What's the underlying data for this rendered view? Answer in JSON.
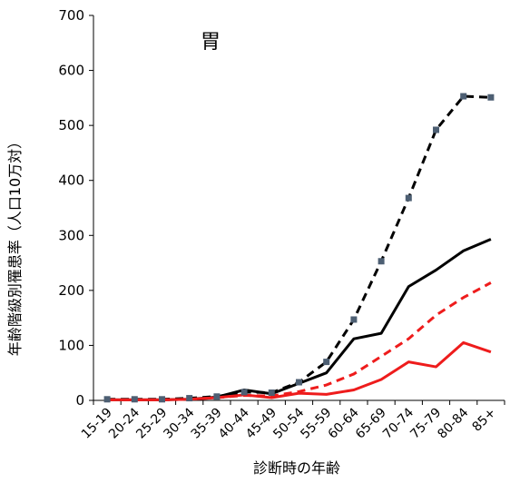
{
  "chart_data": {
    "type": "line",
    "title": "胃",
    "xlabel": "診断時の年齢",
    "ylabel": "年齢階級別罹患率（人口10万対）",
    "ylim": [
      0,
      700
    ],
    "yticks": [
      0,
      100,
      200,
      300,
      400,
      500,
      600,
      700
    ],
    "grid": false,
    "legend": "none",
    "categories": [
      "15-19",
      "20-24",
      "25-29",
      "30-34",
      "35-39",
      "40-44",
      "45-49",
      "50-54",
      "55-59",
      "60-64",
      "65-69",
      "70-74",
      "75-79",
      "80-84",
      "85+"
    ],
    "series": [
      {
        "color": "#000000",
        "dash": true,
        "markers": true,
        "marker_color": "#4d5f73",
        "values": [
          2,
          2,
          2,
          4,
          7,
          15,
          14,
          33,
          70,
          147,
          253,
          368,
          492,
          553,
          551
        ]
      },
      {
        "color": "#000000",
        "dash": false,
        "markers": false,
        "values": [
          1,
          1,
          1,
          2,
          6,
          19,
          12,
          31,
          50,
          112,
          122,
          207,
          237,
          272,
          293
        ]
      },
      {
        "color": "#ee1c1c",
        "dash": true,
        "markers": false,
        "values": [
          1,
          1,
          1,
          2,
          5,
          9,
          8,
          16,
          28,
          48,
          80,
          112,
          155,
          187,
          214
        ]
      },
      {
        "color": "#ee1c1c",
        "dash": false,
        "markers": false,
        "values": [
          1,
          1,
          1,
          2,
          5,
          10,
          5,
          13,
          11,
          19,
          38,
          70,
          61,
          105,
          88
        ]
      }
    ]
  }
}
